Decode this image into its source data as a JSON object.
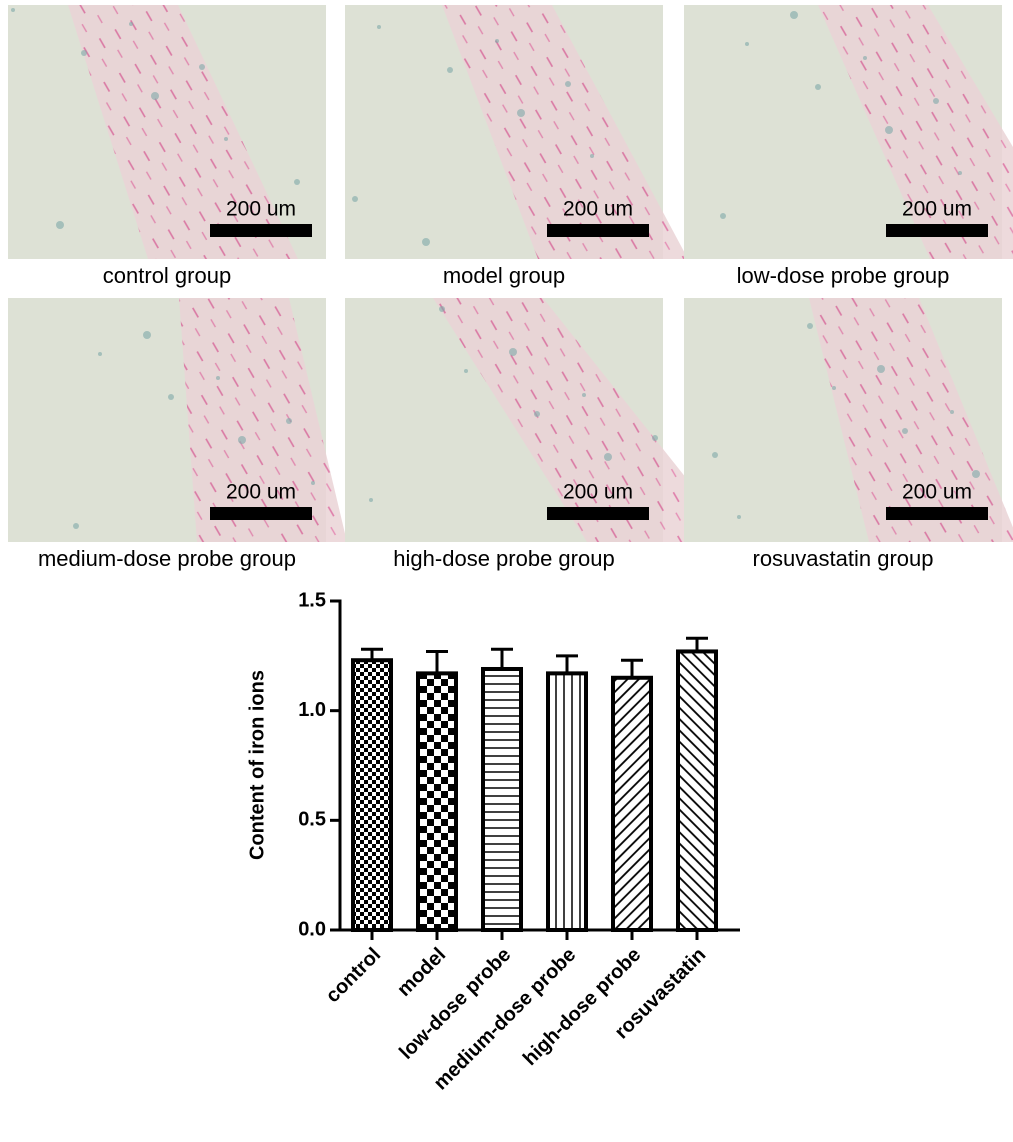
{
  "panels": [
    {
      "scale_label": "200 um",
      "caption": "control group"
    },
    {
      "scale_label": "200 um",
      "caption": "model group"
    },
    {
      "scale_label": "200 um",
      "caption": "low-dose probe group"
    },
    {
      "scale_label": "200 um",
      "caption": "medium-dose probe group"
    },
    {
      "scale_label": "200 um",
      "caption": "high-dose probe group"
    },
    {
      "scale_label": "200 um",
      "caption": "rosuvastatin group"
    }
  ],
  "chart_data": {
    "type": "bar",
    "y_label": "Content of iron ions",
    "categories": [
      "control",
      "model",
      "low-dose probe",
      "medium-dose probe",
      "high-dose probe",
      "rosuvastatin"
    ],
    "values": [
      1.23,
      1.17,
      1.19,
      1.17,
      1.15,
      1.27
    ],
    "errors": [
      0.05,
      0.1,
      0.09,
      0.08,
      0.08,
      0.06
    ],
    "patterns": [
      "fine-checker",
      "checker",
      "horizontal",
      "vertical",
      "diagonal-up",
      "diagonal-down"
    ],
    "ylim": [
      0,
      1.5
    ],
    "yticks": [
      {
        "value": 0,
        "label": "0.0"
      },
      {
        "value": 0.5,
        "label": "0.5"
      },
      {
        "value": 1,
        "label": "1.0"
      },
      {
        "value": 1.5,
        "label": "1.5"
      }
    ]
  }
}
